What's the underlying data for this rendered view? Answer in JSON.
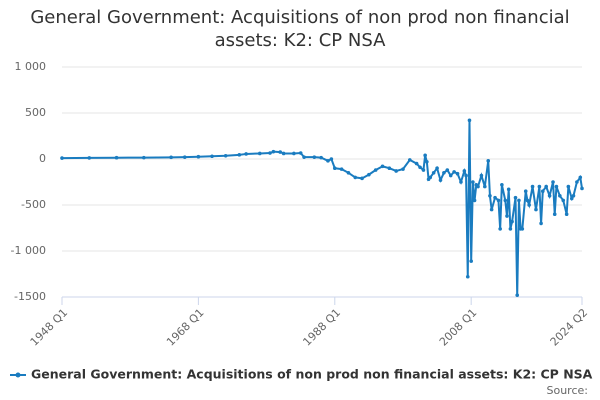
{
  "chart_data": {
    "type": "line",
    "title": "General Government: Acquisitions of non prod non financial assets: K2: CP NSA",
    "source": "Source:",
    "xlim": [
      1948,
      2024.25
    ],
    "xticks": [
      {
        "value": 1948,
        "label": "1948 Q1"
      },
      {
        "value": 1968,
        "label": "1968 Q1"
      },
      {
        "value": 1988,
        "label": "1988 Q1"
      },
      {
        "value": 2008,
        "label": "2008 Q1"
      },
      {
        "value": 2024.25,
        "label": "2024 Q2"
      }
    ],
    "ylim": [
      -1500,
      1000
    ],
    "yticks": [
      {
        "value": 1000,
        "label": "1 000"
      },
      500,
      0,
      -500,
      {
        "value": -1000,
        "label": "-1 000"
      },
      -1500
    ],
    "grid": true,
    "x": [
      1948,
      1952,
      1956,
      1960,
      1964,
      1966,
      1968,
      1970,
      1972,
      1974,
      1975,
      1977,
      1978.5,
      1979,
      1980,
      1980.5,
      1982,
      1983,
      1983.5,
      1985,
      1986,
      1987,
      1987.5,
      1988,
      1989,
      1990,
      1991,
      1992,
      1993,
      1994,
      1995,
      1996,
      1997,
      1998,
      1999,
      2000,
      2000.5,
      2001,
      2001.25,
      2001.5,
      2001.75,
      2002,
      2002.5,
      2003,
      2003.5,
      2004,
      2004.5,
      2005,
      2005.5,
      2006,
      2006.5,
      2007,
      2007.25,
      2007.5,
      2007.75,
      2008,
      2008.25,
      2008.5,
      2008.75,
      2009,
      2009.5,
      2010,
      2010.5,
      2010.75,
      2011,
      2011.5,
      2012,
      2012.25,
      2012.5,
      2013,
      2013.25,
      2013.5,
      2013.75,
      2014,
      2014.5,
      2014.75,
      2015,
      2015.25,
      2015.5,
      2016,
      2016.25,
      2016.5,
      2017,
      2017.5,
      2018,
      2018.25,
      2018.5,
      2019,
      2019.5,
      2020,
      2020.25,
      2020.5,
      2021,
      2021.5,
      2022,
      2022.25,
      2022.75,
      2023,
      2023.5,
      2024,
      2024.25
    ],
    "series": [
      {
        "name": "General Government: Acquisitions of non prod non financial assets: K2: CP NSA",
        "color": "#1a7cc0",
        "values": [
          10,
          12,
          14,
          15,
          18,
          20,
          25,
          30,
          35,
          45,
          55,
          60,
          65,
          80,
          75,
          60,
          60,
          65,
          20,
          20,
          15,
          -20,
          0,
          -100,
          -110,
          -150,
          -200,
          -210,
          -170,
          -120,
          -80,
          -100,
          -130,
          -110,
          -10,
          -50,
          -90,
          -120,
          40,
          -30,
          -220,
          -200,
          -150,
          -100,
          -230,
          -150,
          -120,
          -180,
          -140,
          -160,
          -250,
          -130,
          -180,
          -1280,
          420,
          -1110,
          -250,
          -450,
          -280,
          -300,
          -180,
          -300,
          -20,
          -400,
          -550,
          -420,
          -450,
          -760,
          -280,
          -450,
          -620,
          -330,
          -760,
          -680,
          -420,
          -1480,
          -450,
          -760,
          -760,
          -350,
          -450,
          -500,
          -300,
          -550,
          -300,
          -700,
          -350,
          -300,
          -400,
          -250,
          -600,
          -300,
          -400,
          -450,
          -600,
          -300,
          -430,
          -400,
          -250,
          -200,
          -320
        ]
      }
    ]
  }
}
